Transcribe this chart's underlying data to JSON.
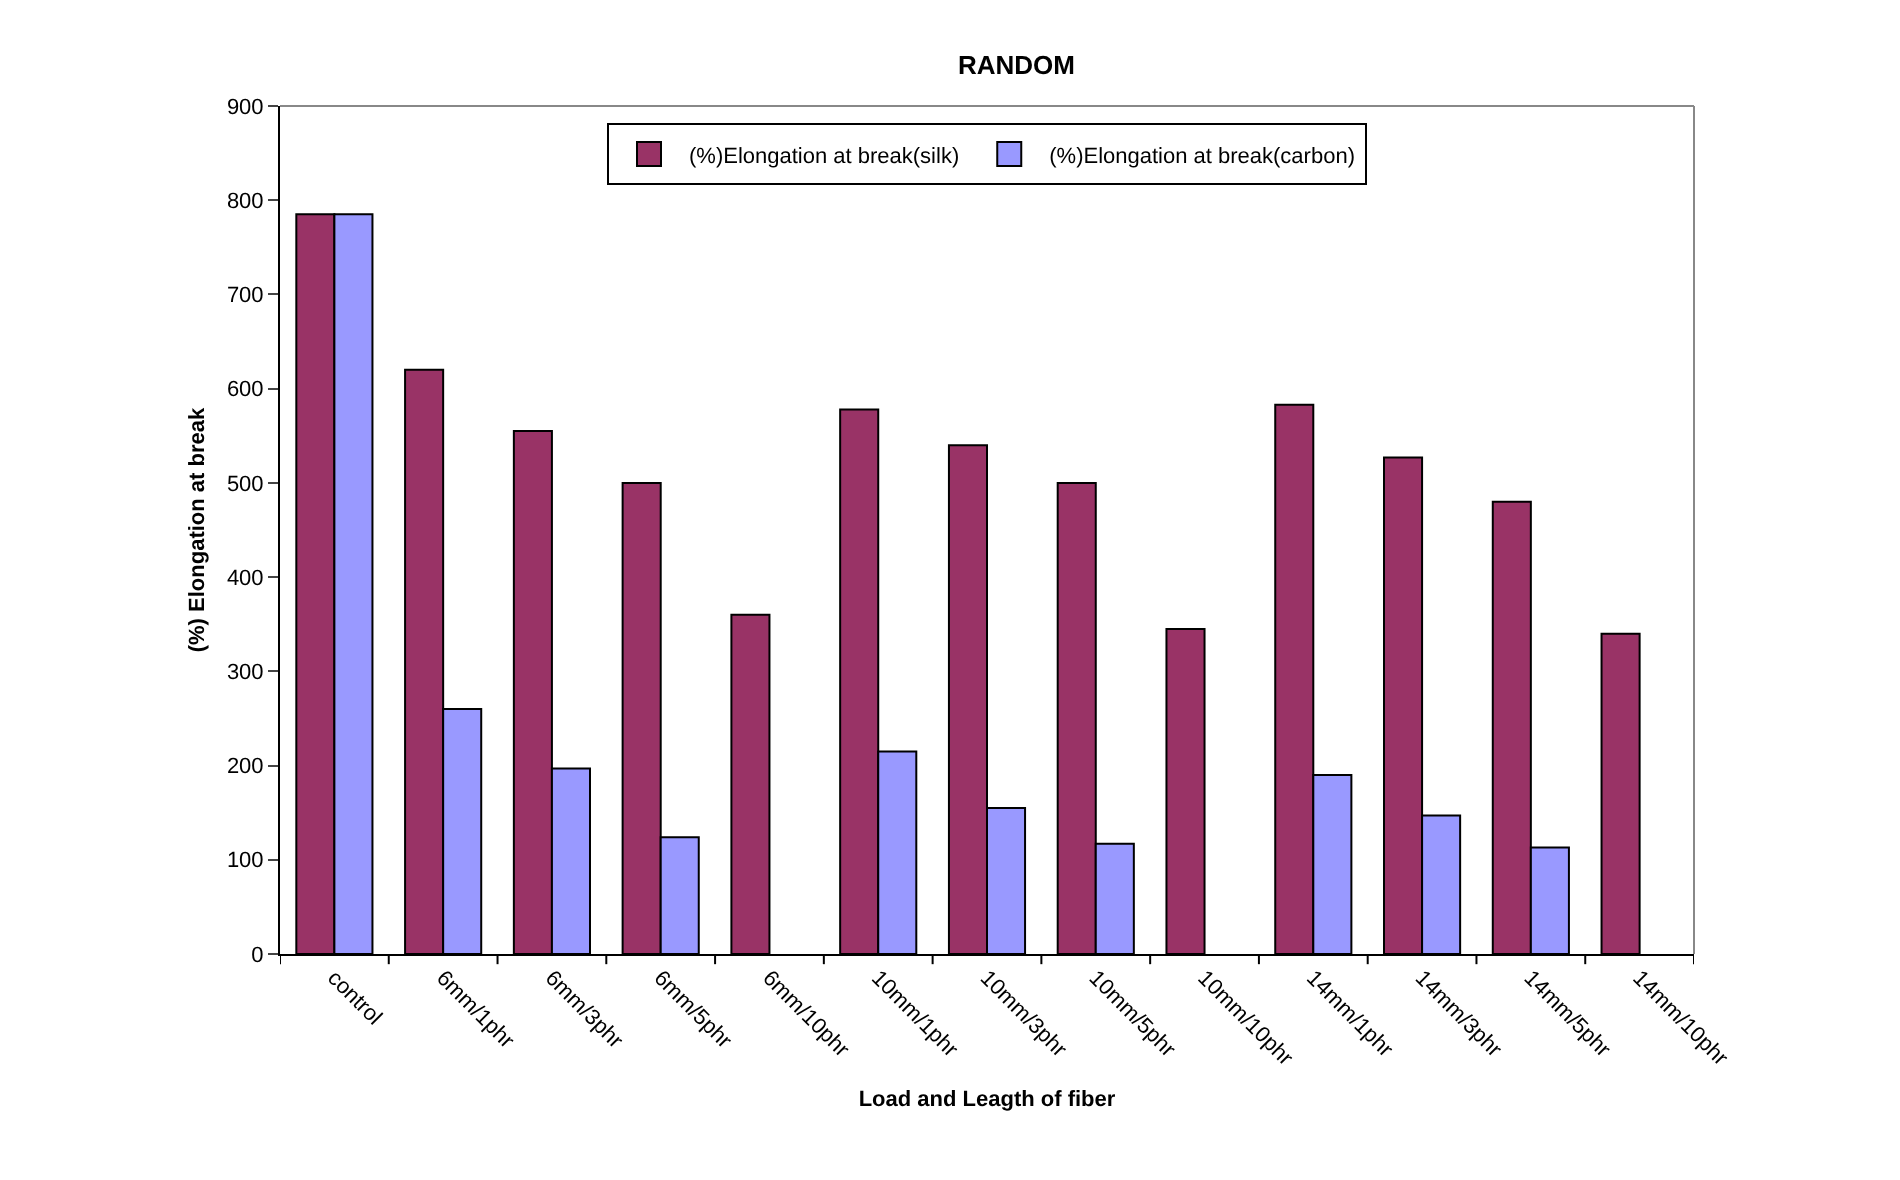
{
  "chart_data": {
    "type": "bar",
    "title": "RANDOM",
    "xlabel": "Load and Leagth of fiber",
    "ylabel": "(%) Elongation at break",
    "categories": [
      "control",
      "6mm/1phr",
      "6mm/3phr",
      "6mm/5phr",
      "6mm/10phr",
      "10mm/1phr",
      "10mm/3phr",
      "10mm/5phr",
      "10mm/10phr",
      "14mm/1phr",
      "14mm/3phr",
      "14mm/5phr",
      "14mm/10phr"
    ],
    "series": [
      {
        "name": "(%)Elongation at break(silk)",
        "color": "#993366",
        "values": [
          785,
          620,
          555,
          500,
          360,
          578,
          540,
          500,
          345,
          583,
          527,
          480,
          340
        ]
      },
      {
        "name": "(%)Elongation at break(carbon)",
        "color": "#9999ff",
        "values": [
          785,
          260,
          197,
          124,
          null,
          215,
          155,
          117,
          null,
          190,
          147,
          113,
          null
        ]
      }
    ],
    "ylim": [
      0,
      900
    ],
    "yticks": [
      0,
      100,
      200,
      300,
      400,
      500,
      600,
      700,
      800,
      900
    ],
    "grid": false,
    "legend": "top"
  }
}
